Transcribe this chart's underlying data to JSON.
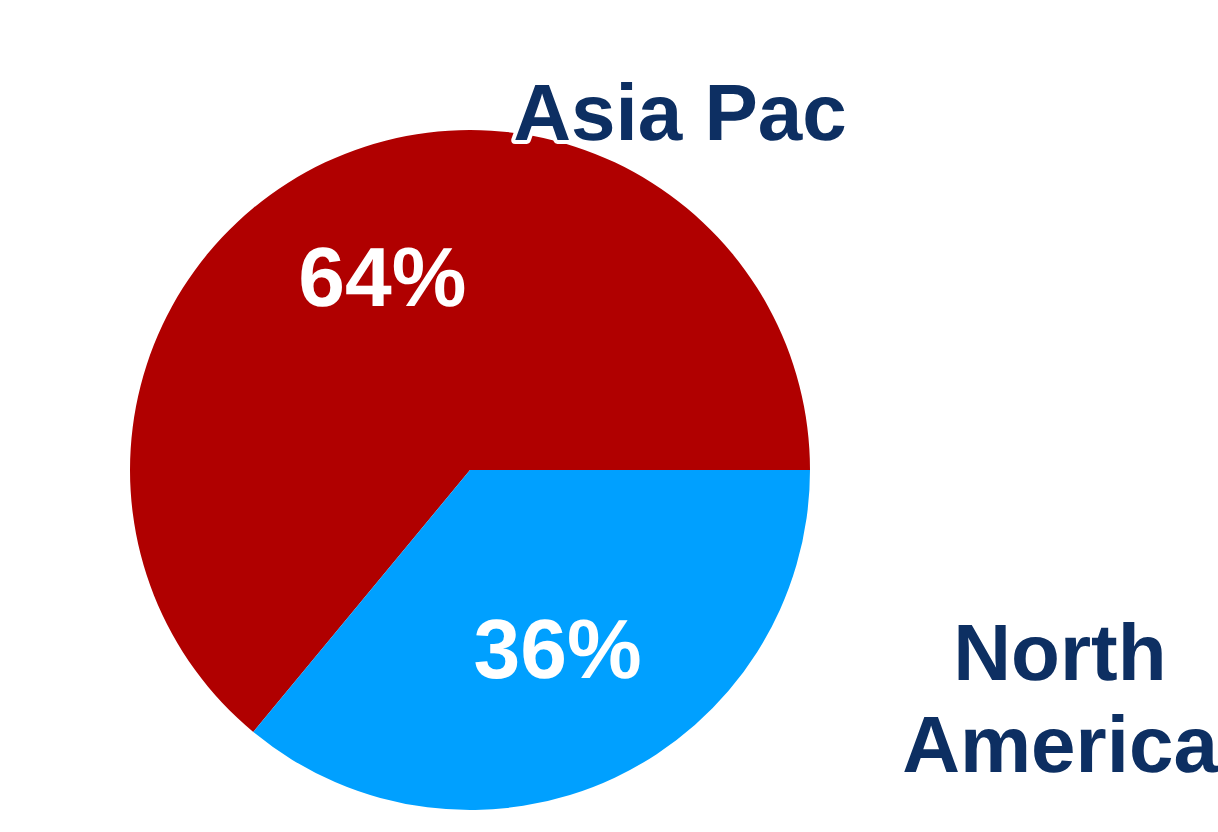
{
  "chart_data": {
    "type": "pie",
    "categories": [
      "Asia Pac",
      "North America"
    ],
    "values": [
      64,
      36
    ],
    "colors": [
      "#b00000",
      "#00a0ff"
    ],
    "value_labels": [
      "64%",
      "36%"
    ],
    "legend": false
  }
}
